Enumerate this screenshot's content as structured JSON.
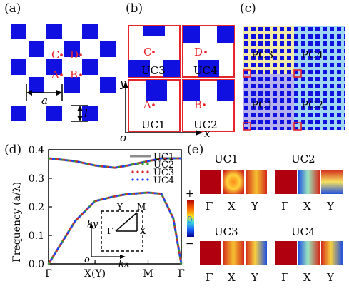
{
  "panels": {
    "a": {
      "label": "(a)",
      "points": [
        "C",
        "D",
        "A",
        "B"
      ],
      "dim_a": "a",
      "dim_l": "l"
    },
    "b": {
      "label": "(b)",
      "points": [
        "C",
        "D",
        "A",
        "B"
      ],
      "cells": [
        "UC3",
        "UC4",
        "UC1",
        "UC2"
      ],
      "axis_x": "x",
      "axis_y": "y",
      "origin": "o"
    },
    "c": {
      "label": "(c)",
      "regions": [
        "PC3",
        "PC4",
        "PC1",
        "PC2"
      ]
    },
    "d": {
      "label": "(d)"
    },
    "e": {
      "label": "(e)",
      "cells": [
        "UC1",
        "UC2",
        "UC3",
        "UC4"
      ],
      "colorbar": {
        "plus": "+",
        "zero": "0",
        "minus": "−"
      },
      "xticks": [
        "Γ",
        "X",
        "Y"
      ]
    }
  },
  "colors": {
    "blue": "#1010e0",
    "red": "#e8232b",
    "uc1": "#8c8c8c",
    "uc2": "#2ca02c",
    "uc3": "#d62728",
    "uc4": "#1f3fff",
    "pc_yellow": "#f2eaa6",
    "pc_blue": "#9fd6f2",
    "pc_purple": "#b6b0ee"
  },
  "chart_data": {
    "type": "line",
    "title": "",
    "xlabel": "",
    "ylabel": "Frequency (a/λ)",
    "xticks": [
      "Γ",
      "X(Y)",
      "M",
      "Γ"
    ],
    "ylim": [
      0.0,
      0.4
    ],
    "yticks": [
      "0.0",
      "0.1",
      "0.2",
      "0.3",
      "0.4"
    ],
    "legend_position": "top-right",
    "series": [
      {
        "name": "UC1",
        "color": "#8c8c8c",
        "upper_band": [
          0.37,
          0.36,
          0.345,
          0.337,
          0.345,
          0.36,
          0.37,
          0.37,
          0.37
        ],
        "lower_band": [
          0.0,
          0.15,
          0.22,
          0.237,
          0.245,
          0.25,
          0.246,
          0.16,
          0.0
        ]
      },
      {
        "name": "UC2",
        "color": "#2ca02c"
      },
      {
        "name": "UC3",
        "color": "#d62728"
      },
      {
        "name": "UC4",
        "color": "#1f3fff"
      }
    ],
    "x_positions": [
      0,
      0.2,
      0.35,
      0.5,
      0.6,
      0.75,
      0.85,
      0.94,
      1.0
    ],
    "inset": {
      "labels": [
        "Y",
        "M",
        "Γ",
        "X"
      ],
      "kx": "kx",
      "ky": "ky",
      "origin": "o"
    }
  }
}
